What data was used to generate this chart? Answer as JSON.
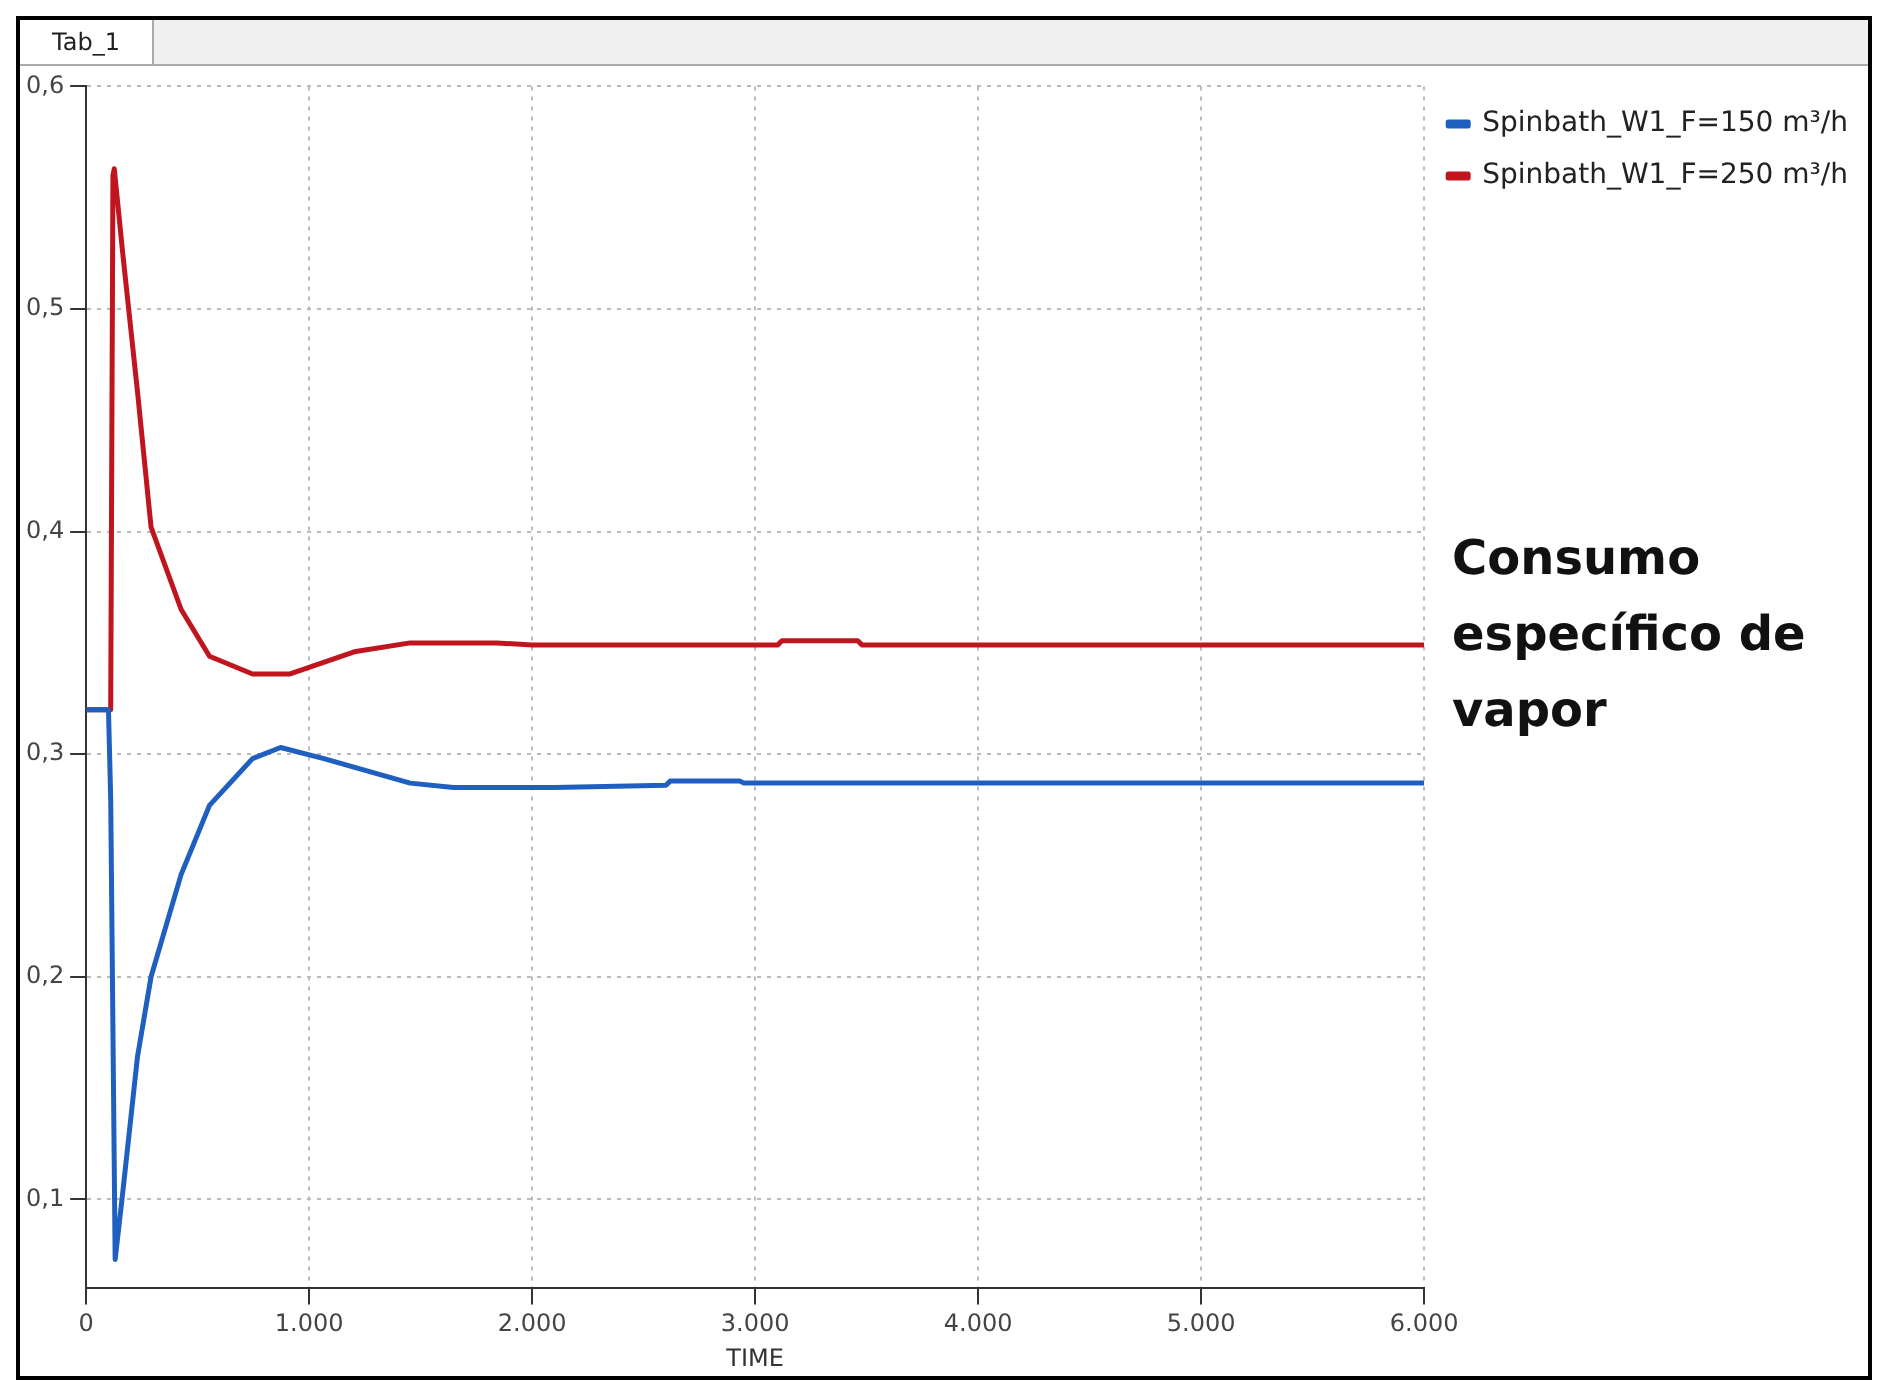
{
  "chart_data": {
    "type": "line",
    "xlabel": "TIME",
    "annotations": [
      "Tab_1",
      "Consumo específico de vapor"
    ],
    "xlim": [
      0,
      6000
    ],
    "xticks": [
      0,
      {
        "value": 1000,
        "label": "1.000"
      },
      {
        "value": 2000,
        "label": "2.000"
      },
      {
        "value": 3000,
        "label": "3.000"
      },
      {
        "value": 4000,
        "label": "4.000"
      },
      {
        "value": 5000,
        "label": "5.000"
      },
      {
        "value": 6000,
        "label": "6.000"
      }
    ],
    "ylim": [
      0.06,
      0.6
    ],
    "yticks": [
      {
        "value": 0.1,
        "label": "0,1"
      },
      {
        "value": 0.2,
        "label": "0,2"
      },
      {
        "value": 0.3,
        "label": "0,3"
      },
      {
        "value": 0.4,
        "label": "0,4"
      },
      {
        "value": 0.5,
        "label": "0,5"
      },
      {
        "value": 0.6,
        "label": "0,6"
      }
    ],
    "grid": true,
    "legend": "top right",
    "marker": "none",
    "line_style": "solid",
    "series": [
      {
        "name": "Spinbath_W1_F=150 m³/h",
        "color": "#1f5fbf",
        "x": [
          0,
          100,
          110,
          130,
          165,
          230,
          291,
          426,
          553,
          746,
          872,
          1066,
          1453,
          1647,
          2100,
          2600,
          2620,
          2930,
          2950,
          6000
        ],
        "values": [
          0.32,
          0.32,
          0.28,
          0.073,
          0.104,
          0.164,
          0.2,
          0.246,
          0.277,
          0.298,
          0.303,
          0.298,
          0.287,
          0.285,
          0.285,
          0.286,
          0.288,
          0.288,
          0.287,
          0.287
        ]
      },
      {
        "name": "Spinbath_W1_F=250 m³/h",
        "color": "#c0141e",
        "x": [
          0,
          110,
          120,
          126,
          165,
          230,
          291,
          426,
          553,
          746,
          911,
          1202,
          1453,
          1841,
          2000,
          3100,
          3120,
          3460,
          3480,
          6000
        ],
        "values": [
          0.32,
          0.32,
          0.56,
          0.563,
          0.524,
          0.463,
          0.402,
          0.365,
          0.344,
          0.336,
          0.336,
          0.346,
          0.35,
          0.35,
          0.349,
          0.349,
          0.351,
          0.351,
          0.349,
          0.349
        ]
      }
    ]
  }
}
